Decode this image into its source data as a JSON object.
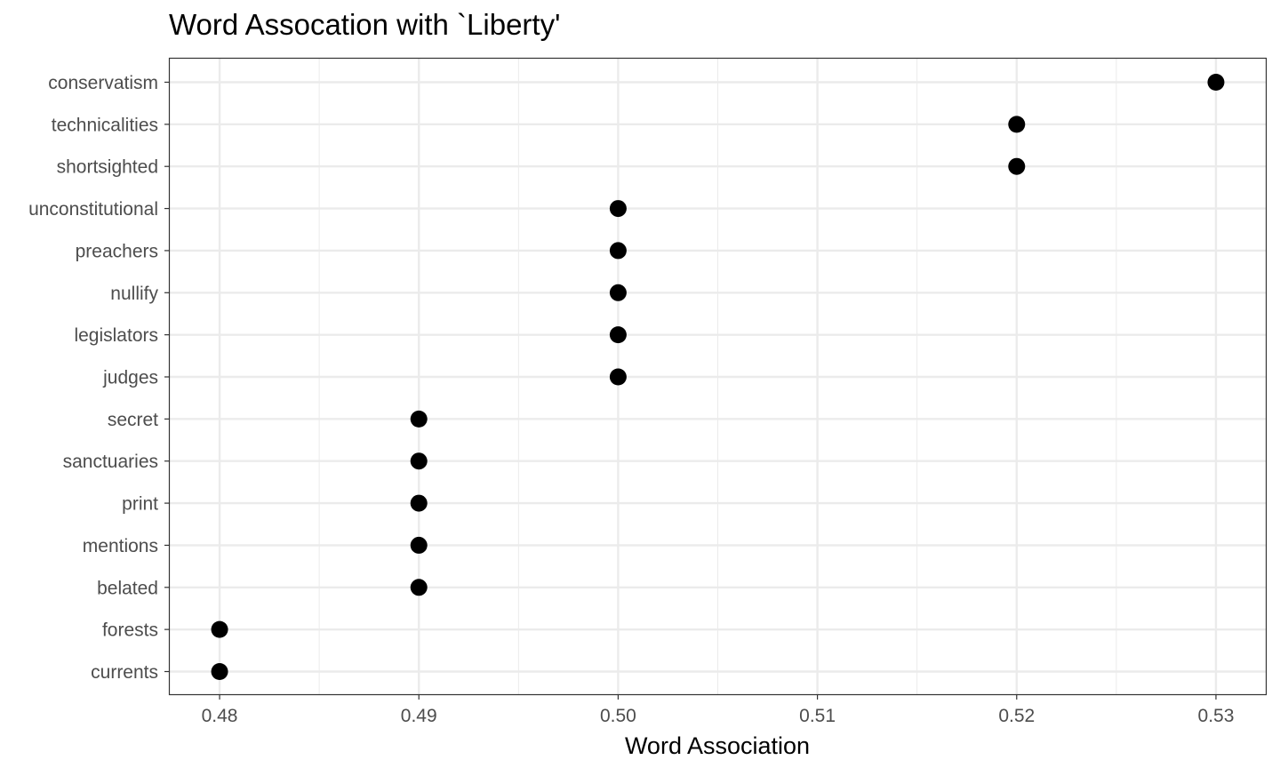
{
  "chart_data": {
    "type": "scatter",
    "title": "Word Assocation with `Liberty'",
    "xlabel": "Word Association",
    "ylabel": "",
    "xlim": [
      0.4775,
      0.5325
    ],
    "x_ticks": [
      0.48,
      0.49,
      0.5,
      0.51,
      0.52,
      0.53
    ],
    "x_tick_labels": [
      "0.48",
      "0.49",
      "0.50",
      "0.51",
      "0.52",
      "0.53"
    ],
    "categories": [
      "currents",
      "forests",
      "belated",
      "mentions",
      "print",
      "sanctuaries",
      "secret",
      "judges",
      "legislators",
      "nullify",
      "preachers",
      "unconstitutional",
      "shortsighted",
      "technicalities",
      "conservatism"
    ],
    "values": [
      0.48,
      0.48,
      0.49,
      0.49,
      0.49,
      0.49,
      0.49,
      0.5,
      0.5,
      0.5,
      0.5,
      0.5,
      0.52,
      0.52,
      0.53
    ],
    "grid": true,
    "point_color": "#000000",
    "grid_color": "#ebebeb",
    "panel_border_color": "#333333",
    "tick_label_color": "#4d4d4d"
  }
}
